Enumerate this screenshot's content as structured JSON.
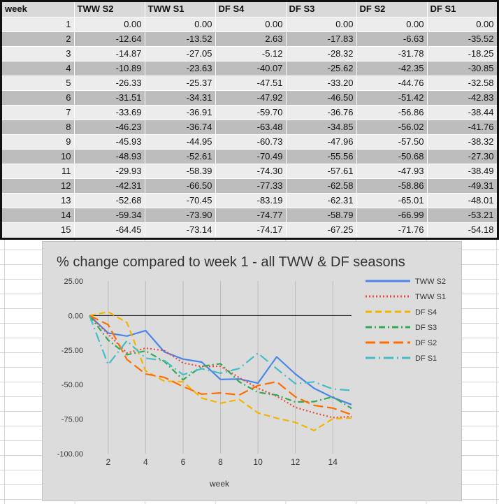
{
  "table": {
    "headers": [
      "week",
      "TWW S2",
      "TWW S1",
      "DF S4",
      "DF S3",
      "DF S2",
      "DF S1"
    ],
    "rows": [
      [
        "1",
        "0.00",
        "0.00",
        "0.00",
        "0.00",
        "0.00",
        "0.00"
      ],
      [
        "2",
        "-12.64",
        "-13.52",
        "2.63",
        "-17.83",
        "-6.63",
        "-35.52"
      ],
      [
        "3",
        "-14.87",
        "-27.05",
        "-5.12",
        "-28.32",
        "-31.78",
        "-18.25"
      ],
      [
        "4",
        "-10.89",
        "-23.63",
        "-40.07",
        "-25.62",
        "-42.35",
        "-30.85"
      ],
      [
        "5",
        "-26.33",
        "-25.37",
        "-47.51",
        "-33.20",
        "-44.76",
        "-32.58"
      ],
      [
        "6",
        "-31.51",
        "-34.31",
        "-47.92",
        "-46.50",
        "-51.42",
        "-42.83"
      ],
      [
        "7",
        "-33.69",
        "-36.91",
        "-59.70",
        "-36.76",
        "-56.86",
        "-38.44"
      ],
      [
        "8",
        "-46.23",
        "-36.74",
        "-63.48",
        "-34.85",
        "-56.02",
        "-41.76"
      ],
      [
        "9",
        "-45.93",
        "-44.95",
        "-60.73",
        "-47.96",
        "-57.50",
        "-38.32"
      ],
      [
        "10",
        "-48.93",
        "-52.61",
        "-70.49",
        "-55.56",
        "-50.68",
        "-27.30"
      ],
      [
        "11",
        "-29.93",
        "-58.39",
        "-74.30",
        "-57.61",
        "-47.93",
        "-38.49"
      ],
      [
        "12",
        "-42.31",
        "-66.50",
        "-77.33",
        "-62.58",
        "-58.86",
        "-49.31"
      ],
      [
        "13",
        "-52.68",
        "-70.45",
        "-83.19",
        "-62.31",
        "-65.01",
        "-48.01"
      ],
      [
        "14",
        "-59.34",
        "-73.90",
        "-74.77",
        "-58.79",
        "-66.99",
        "-53.21"
      ],
      [
        "15",
        "-64.45",
        "-73.14",
        "-74.17",
        "-67.25",
        "-71.76",
        "-54.18"
      ]
    ]
  },
  "chart_data": {
    "type": "line",
    "title": "% change compared to week 1 - all TWW & DF seasons",
    "xlabel": "week",
    "ylabel": "",
    "x": [
      1,
      2,
      3,
      4,
      5,
      6,
      7,
      8,
      9,
      10,
      11,
      12,
      13,
      14,
      15
    ],
    "xlim": [
      1,
      15
    ],
    "ylim": [
      -100,
      25
    ],
    "xticks": [
      2,
      4,
      6,
      8,
      10,
      12,
      14
    ],
    "yticks": [
      25,
      0,
      -25,
      -50,
      -75,
      -100
    ],
    "ytick_labels": [
      "25.00",
      "0.00",
      "-25.00",
      "-50.00",
      "-75.00",
      "-100.00"
    ],
    "grid": "vertical",
    "zero_line": true,
    "legend_position": "right",
    "series": [
      {
        "name": "TWW S2",
        "color": "#4a86e8",
        "style": "solid",
        "values": [
          0,
          -12.64,
          -14.87,
          -10.89,
          -26.33,
          -31.51,
          -33.69,
          -46.23,
          -45.93,
          -48.93,
          -29.93,
          -42.31,
          -52.68,
          -59.34,
          -64.45
        ]
      },
      {
        "name": "TWW S1",
        "color": "#e84b3c",
        "style": "dotted",
        "values": [
          0,
          -13.52,
          -27.05,
          -23.63,
          -25.37,
          -34.31,
          -36.91,
          -36.74,
          -44.95,
          -52.61,
          -58.39,
          -66.5,
          -70.45,
          -73.9,
          -73.14
        ]
      },
      {
        "name": "DF S4",
        "color": "#f4b400",
        "style": "dashed",
        "values": [
          0,
          2.63,
          -5.12,
          -40.07,
          -47.51,
          -47.92,
          -59.7,
          -63.48,
          -60.73,
          -70.49,
          -74.3,
          -77.33,
          -83.19,
          -74.77,
          -74.17
        ]
      },
      {
        "name": "DF S3",
        "color": "#34a853",
        "style": "dashdot",
        "values": [
          0,
          -17.83,
          -28.32,
          -25.62,
          -33.2,
          -46.5,
          -36.76,
          -34.85,
          -47.96,
          -55.56,
          -57.61,
          -62.58,
          -62.31,
          -58.79,
          -67.25
        ]
      },
      {
        "name": "DF S2",
        "color": "#ff6d01",
        "style": "longdash",
        "values": [
          0,
          -6.63,
          -31.78,
          -42.35,
          -44.76,
          -51.42,
          -56.86,
          -56.02,
          -57.5,
          -50.68,
          -47.93,
          -58.86,
          -65.01,
          -66.99,
          -71.76
        ]
      },
      {
        "name": "DF S1",
        "color": "#46bdc6",
        "style": "longdashdot",
        "values": [
          0,
          -35.52,
          -18.25,
          -30.85,
          -32.58,
          -42.83,
          -38.44,
          -41.76,
          -38.32,
          -27.3,
          -38.49,
          -49.31,
          -48.01,
          -53.21,
          -54.18
        ]
      }
    ]
  }
}
